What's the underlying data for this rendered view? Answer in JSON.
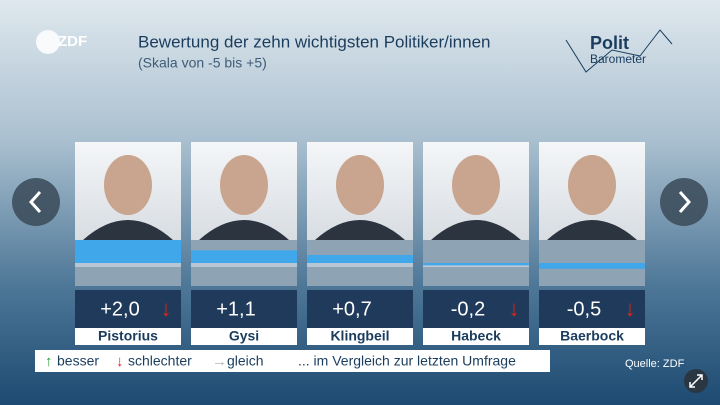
{
  "logo": "ZDF",
  "brand": {
    "polit": "Polit",
    "barometer": "Barometer"
  },
  "chart_data": {
    "type": "bar",
    "title": "Bewertung der zehn wichtigsten Politiker/innen",
    "subtitle": "(Skala von -5 bis +5)",
    "categories": [
      "Pistorius",
      "Gysi",
      "Klingbeil",
      "Habeck",
      "Baerbock"
    ],
    "values": [
      2.0,
      1.1,
      0.7,
      -0.2,
      -0.5
    ],
    "value_labels": [
      "+2,0",
      "+1,1",
      "+0,7",
      "-0,2",
      "-0,5"
    ],
    "trend": [
      "↓",
      null,
      null,
      "↓",
      "↓"
    ],
    "trend_color": "#e1251b",
    "color": "#3fa7ea",
    "ylim": [
      -2,
      2
    ],
    "legend": [
      {
        "symbol": "↑",
        "label": "besser",
        "color": "#2e9e3e"
      },
      {
        "symbol": "↓",
        "label": "schlechter",
        "color": "#e1251b"
      },
      {
        "symbol": "→",
        "label": "gleich",
        "color": "#b8b8b8"
      }
    ],
    "legend_note": "... im Vergleich zur letzten Umfrage",
    "source": "Quelle: ZDF"
  }
}
